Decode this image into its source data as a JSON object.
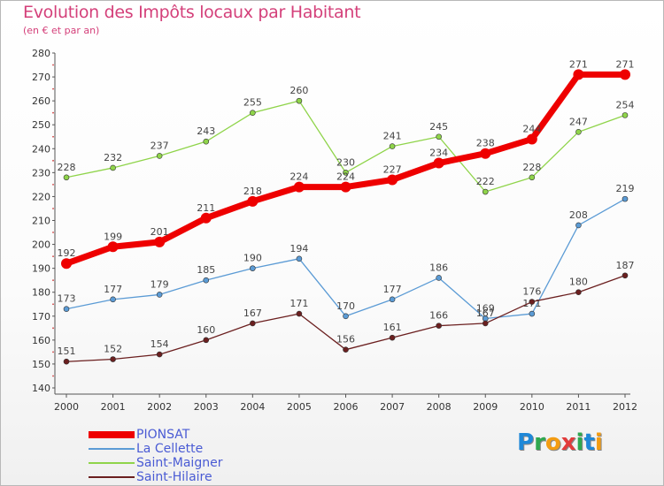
{
  "header": {
    "title": "Evolution des Impôts locaux par Habitant",
    "subtitle": "(en € et par an)"
  },
  "colors": {
    "title": "#d4407a",
    "legend_text": "#4a5bd4",
    "axis": "#555555"
  },
  "logo": {
    "text": "Proxiti",
    "letters": [
      {
        "ch": "P",
        "color": "#1e88d8"
      },
      {
        "ch": "r",
        "color": "#2fa84f"
      },
      {
        "ch": "o",
        "color": "#f39c12"
      },
      {
        "ch": "x",
        "color": "#e23b3b"
      },
      {
        "ch": "i",
        "color": "#2fa84f"
      },
      {
        "ch": "t",
        "color": "#1e88d8"
      },
      {
        "ch": "i",
        "color": "#f39c12"
      }
    ]
  },
  "chart_data": {
    "type": "line",
    "title": "Evolution des Impôts locaux par Habitant",
    "subtitle": "(en € et par an)",
    "xlabel": "",
    "ylabel": "",
    "x": [
      "2000",
      "2001",
      "2002",
      "2003",
      "2004",
      "2005",
      "2006",
      "2007",
      "2008",
      "2009",
      "2010",
      "2011",
      "2012"
    ],
    "ylim": [
      140,
      280
    ],
    "yticks": [
      140,
      150,
      160,
      170,
      180,
      190,
      200,
      210,
      220,
      230,
      240,
      250,
      260,
      270,
      280
    ],
    "grid": false,
    "legend_position": "bottom-left",
    "series": [
      {
        "name": "PIONSAT",
        "color": "#ee0000",
        "width": 7,
        "values": [
          192,
          199,
          201,
          211,
          218,
          224,
          224,
          227,
          234,
          238,
          244,
          271,
          271
        ]
      },
      {
        "name": "La Cellette",
        "color": "#5b9bd5",
        "width": 1.3,
        "values": [
          173,
          177,
          179,
          185,
          190,
          194,
          170,
          177,
          186,
          169,
          171,
          208,
          219
        ]
      },
      {
        "name": "Saint-Maigner",
        "color": "#8fd44a",
        "width": 1.3,
        "values": [
          228,
          232,
          237,
          243,
          255,
          260,
          230,
          241,
          245,
          222,
          228,
          247,
          254
        ]
      },
      {
        "name": "Saint-Hilaire",
        "color": "#6b1f1f",
        "width": 1.3,
        "values": [
          151,
          152,
          154,
          160,
          167,
          171,
          156,
          161,
          166,
          167,
          176,
          180,
          187
        ]
      }
    ]
  }
}
